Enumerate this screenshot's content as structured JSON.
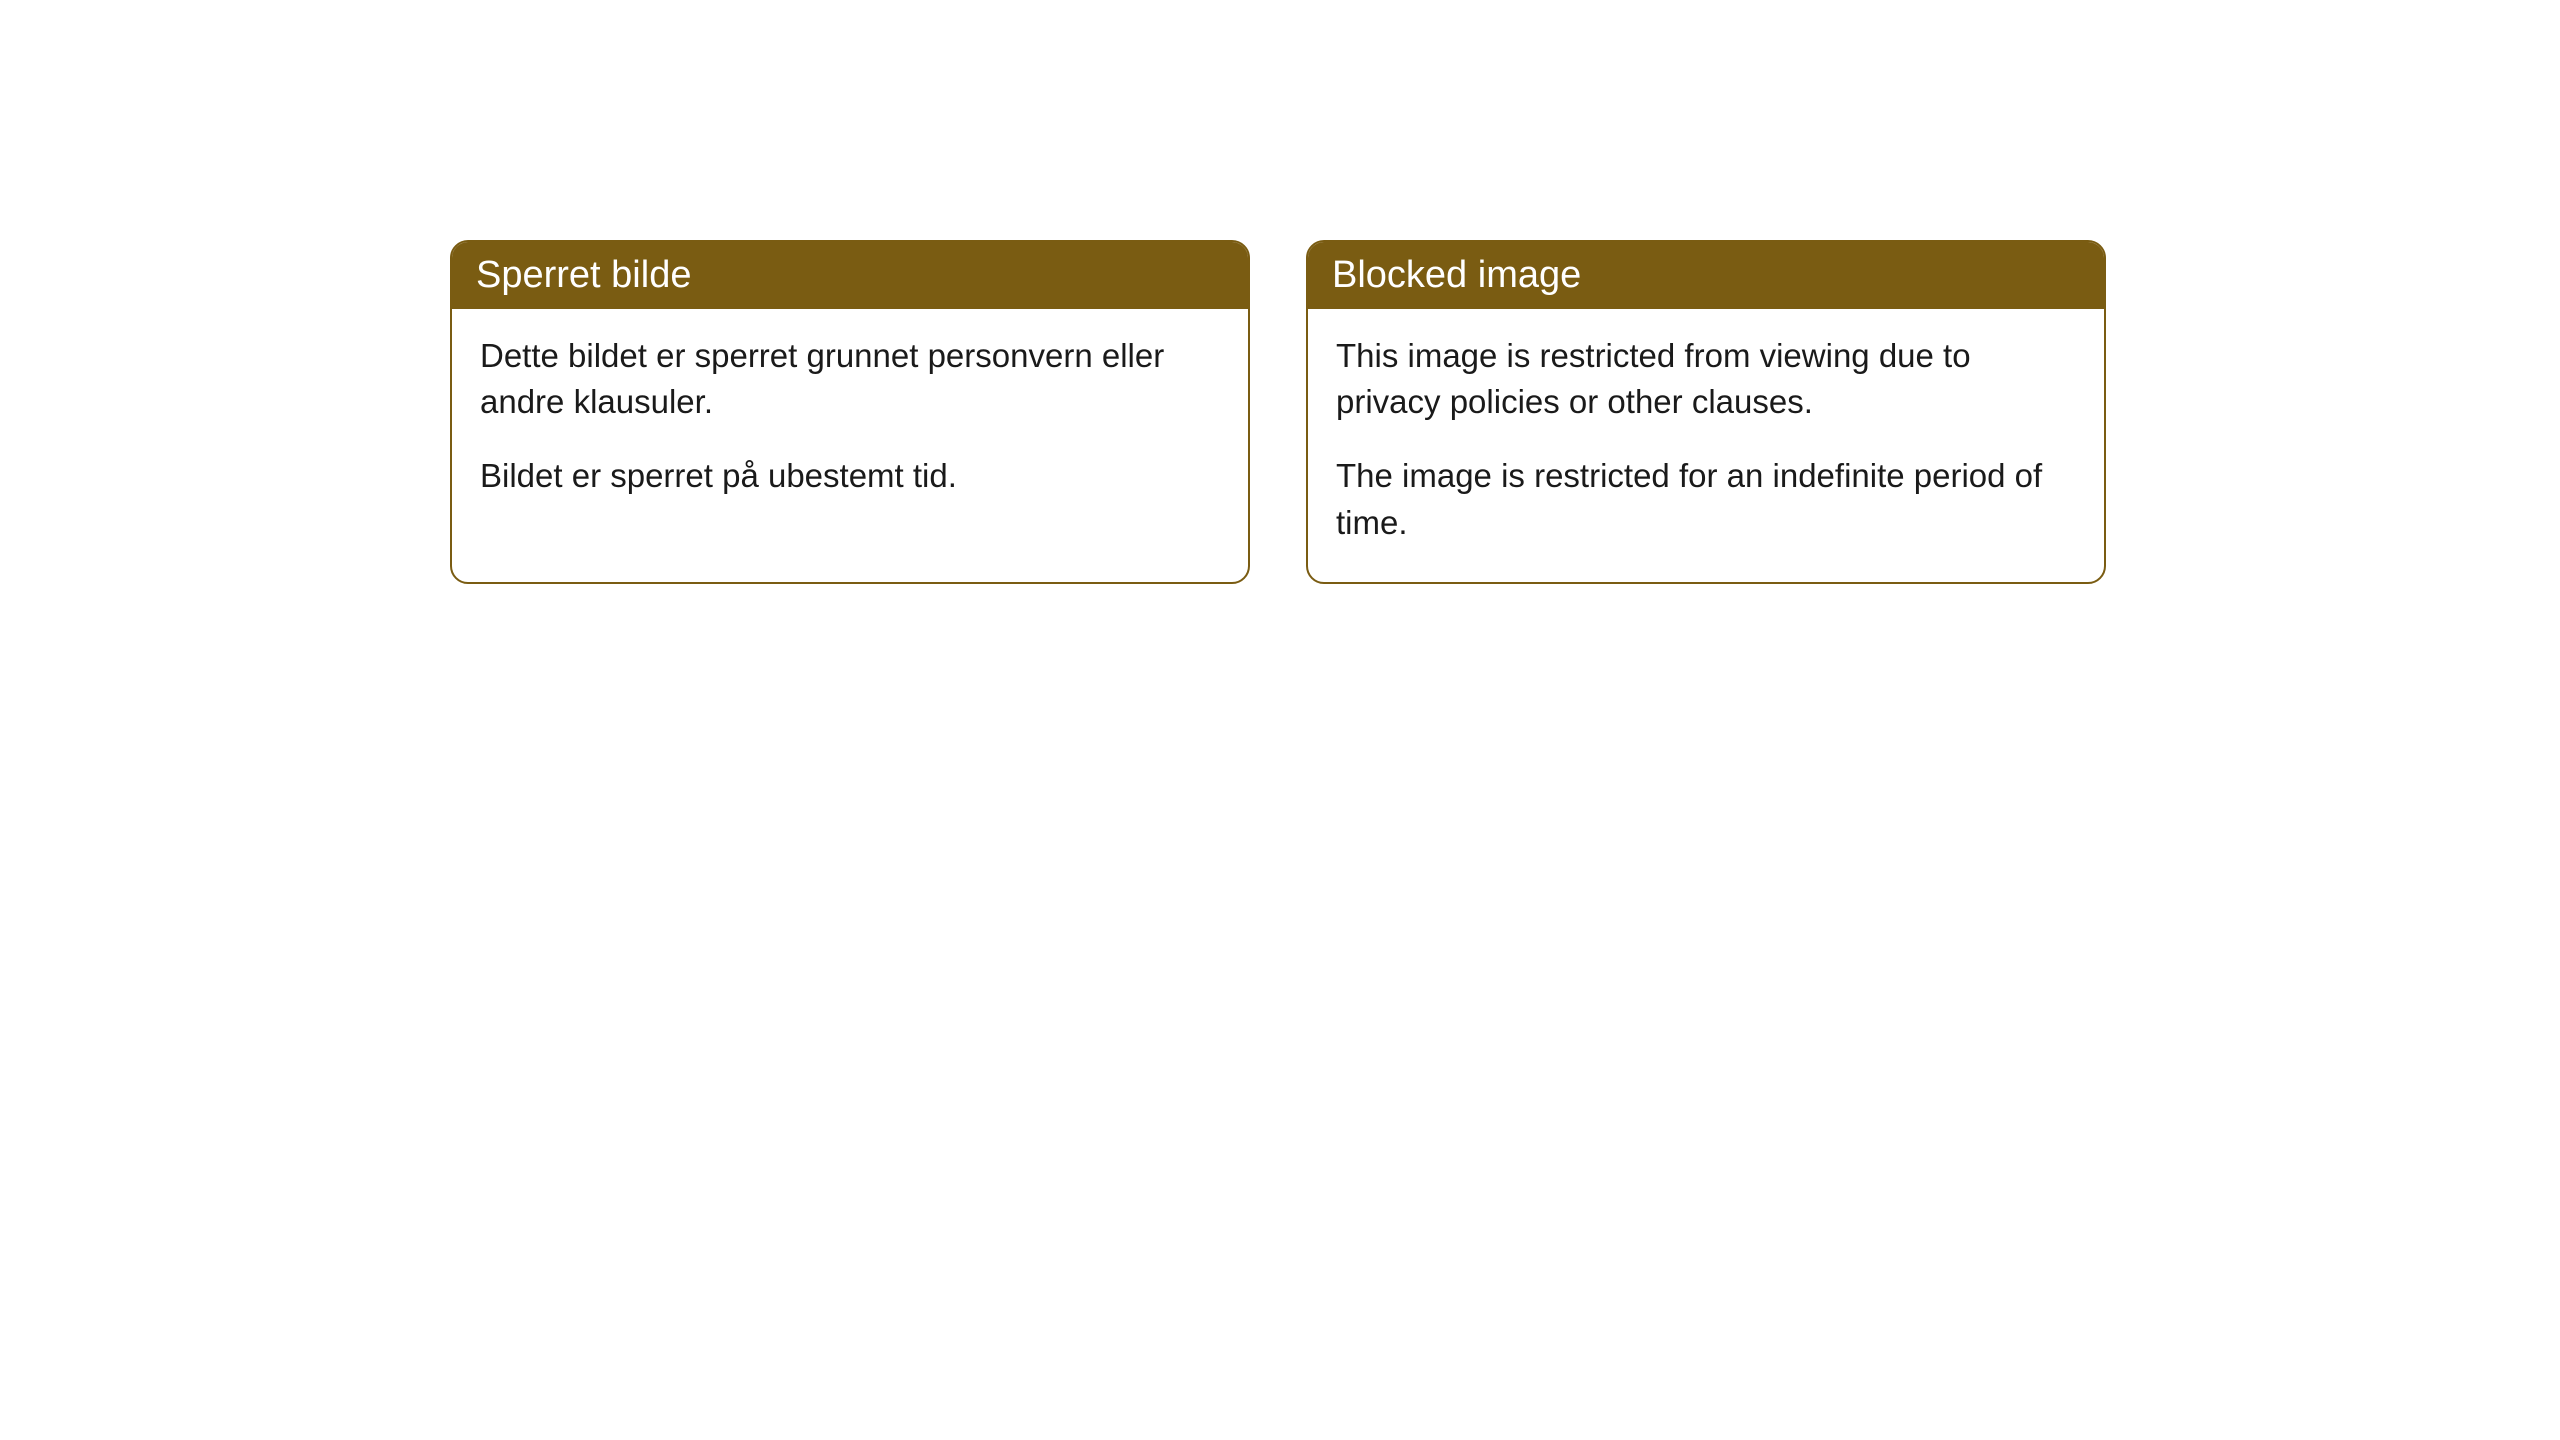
{
  "cards": [
    {
      "title": "Sperret bilde",
      "paragraph1": "Dette bildet er sperret grunnet personvern eller andre klausuler.",
      "paragraph2": "Bildet er sperret på ubestemt tid."
    },
    {
      "title": "Blocked image",
      "paragraph1": "This image is restricted from viewing due to privacy policies or other clauses.",
      "paragraph2": "The image is restricted for an indefinite period of time."
    }
  ],
  "styling": {
    "header_background_color": "#7a5c12",
    "header_text_color": "#ffffff",
    "card_border_color": "#7a5c12",
    "card_background_color": "#ffffff",
    "body_text_color": "#1a1a1a",
    "page_background_color": "#ffffff",
    "border_radius": 18,
    "title_fontsize": 38,
    "body_fontsize": 33
  }
}
